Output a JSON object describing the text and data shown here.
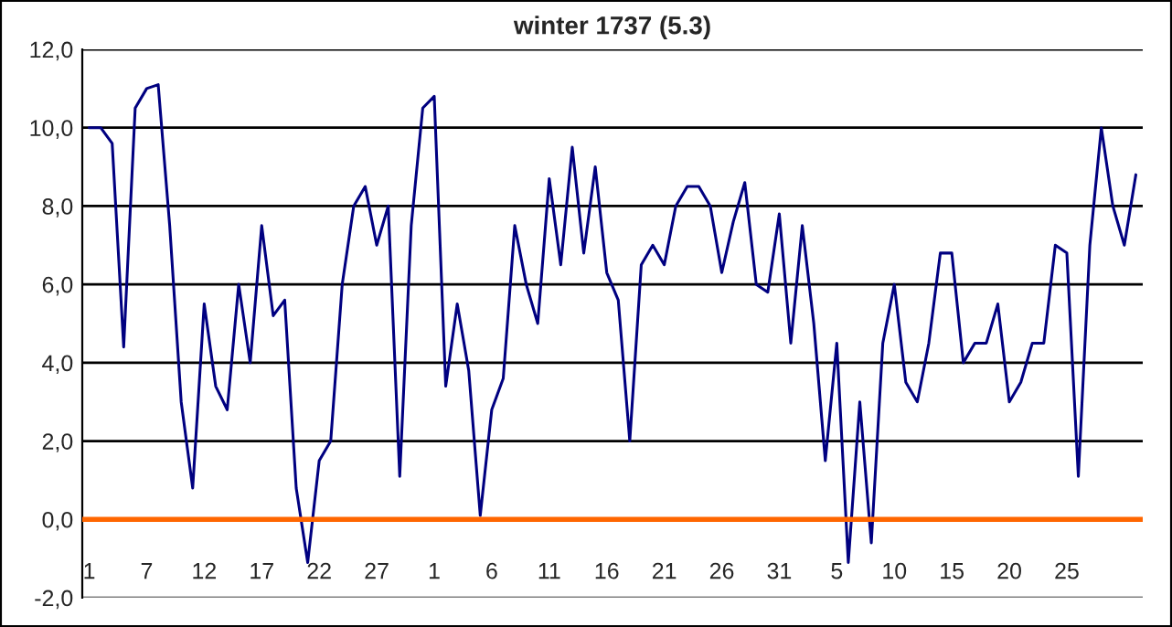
{
  "chart_data": {
    "type": "line",
    "title": "winter 1737 (5.3)",
    "categories": [
      "1",
      null,
      null,
      null,
      null,
      "7",
      null,
      null,
      null,
      null,
      "12",
      null,
      null,
      null,
      null,
      "17",
      null,
      null,
      null,
      null,
      "22",
      null,
      null,
      null,
      null,
      "27",
      null,
      null,
      null,
      null,
      "1",
      null,
      null,
      null,
      null,
      "6",
      null,
      null,
      null,
      null,
      "11",
      null,
      null,
      null,
      null,
      "16",
      null,
      null,
      null,
      null,
      "21",
      null,
      null,
      null,
      null,
      "26",
      null,
      null,
      null,
      null,
      "31",
      null,
      null,
      null,
      null,
      "5",
      null,
      null,
      null,
      null,
      "10",
      null,
      null,
      null,
      null,
      "15",
      null,
      null,
      null,
      null,
      "20",
      null,
      null,
      null,
      null,
      "25",
      null,
      null,
      null,
      null,
      null,
      null
    ],
    "series": [
      {
        "color": "#000080",
        "values": [
          10.0,
          10.0,
          9.6,
          4.4,
          10.5,
          11.0,
          11.1,
          7.5,
          3.0,
          0.8,
          5.5,
          3.4,
          2.8,
          6.0,
          4.0,
          7.5,
          5.2,
          5.6,
          0.8,
          -1.1,
          1.5,
          2.0,
          6.0,
          8.0,
          8.5,
          7.0,
          8.0,
          1.1,
          7.5,
          10.5,
          10.8,
          3.4,
          5.5,
          3.8,
          0.1,
          2.8,
          3.6,
          7.5,
          6.0,
          5.0,
          8.7,
          6.5,
          9.5,
          6.8,
          9.0,
          6.3,
          5.6,
          2.0,
          6.5,
          7.0,
          6.5,
          8.0,
          8.5,
          8.5,
          8.0,
          6.3,
          7.6,
          8.6,
          6.0,
          5.8,
          7.8,
          4.5,
          7.5,
          5.0,
          1.5,
          4.5,
          -1.1,
          3.0,
          -0.6,
          4.5,
          6.0,
          3.5,
          3.0,
          4.5,
          6.8,
          6.8,
          4.0,
          4.5,
          4.5,
          5.5,
          3.0,
          3.5,
          4.5,
          4.5,
          7.0,
          6.8,
          1.1,
          7.0,
          10.0,
          8.0,
          7.0,
          8.8
        ]
      }
    ],
    "ylim": [
      -2,
      12
    ],
    "yticks": [
      {
        "value": -2,
        "label": "-2,0"
      },
      {
        "value": 0,
        "label": "0,0"
      },
      {
        "value": 2,
        "label": "2,0"
      },
      {
        "value": 4,
        "label": "4,0"
      },
      {
        "value": 6,
        "label": "6,0"
      },
      {
        "value": 8,
        "label": "8,0"
      },
      {
        "value": 10,
        "label": "10,0"
      },
      {
        "value": 12,
        "label": "12,0"
      }
    ],
    "grid": "y",
    "ref_lines": [
      {
        "axis": "y",
        "value": 0,
        "color": "#ff6600"
      }
    ],
    "marker": "none",
    "line_style": "solid",
    "legend": false
  }
}
